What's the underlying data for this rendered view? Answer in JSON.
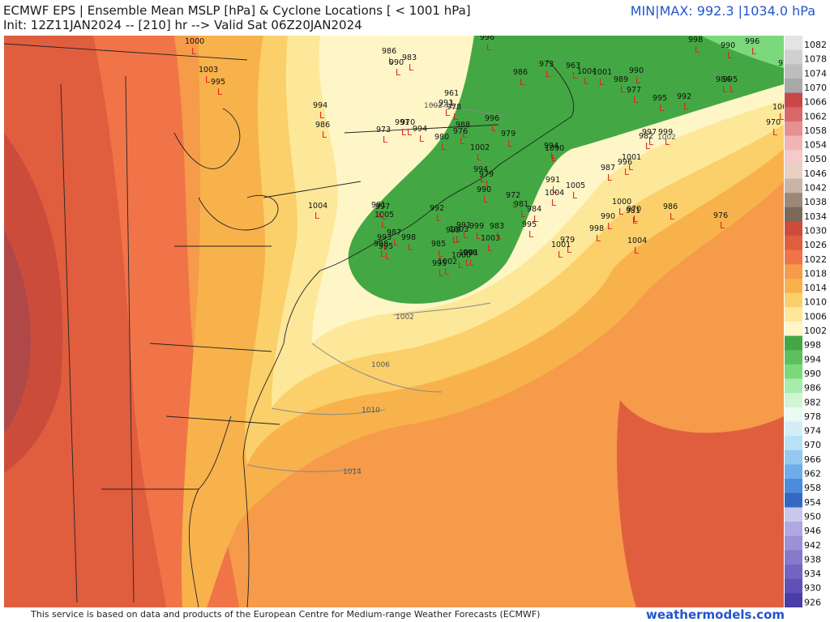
{
  "header": {
    "title_line1": "ECMWF EPS | Ensemble Mean MSLP [hPa] & Cyclone Locations [ < 1001 hPa]",
    "title_line2": "Init: 12Z11JAN2024 -- [210] hr --> Valid Sat 06Z20JAN2024",
    "minmax": "MIN|MAX: 992.3 |1034.0 hPa"
  },
  "footer": {
    "credit": "This service is based on data and products of the European Centre for Medium-range Weather Forecasts (ECMWF)",
    "brand": "weathermodels.com"
  },
  "legend": {
    "labels": [
      "1082",
      "1078",
      "1074",
      "1070",
      "1066",
      "1062",
      "1058",
      "1054",
      "1050",
      "1046",
      "1042",
      "1038",
      "1034",
      "1030",
      "1026",
      "1022",
      "1018",
      "1014",
      "1010",
      "1006",
      "1002",
      "998",
      "994",
      "990",
      "986",
      "982",
      "978",
      "974",
      "970",
      "966",
      "962",
      "958",
      "954",
      "950",
      "946",
      "942",
      "938",
      "934",
      "930",
      "926"
    ],
    "colors": [
      "#e4e4e4",
      "#d0d0d0",
      "#bdbdbd",
      "#a8a8a8",
      "#c84848",
      "#d86868",
      "#e89090",
      "#f0b4b4",
      "#f4caca",
      "#ead0c4",
      "#c8b4a8",
      "#9c8878",
      "#7c6858",
      "#cc4c3c",
      "#e05e3e",
      "#f07448",
      "#f59b4a",
      "#f8b24c",
      "#fbd06a",
      "#fde89a",
      "#fff6c8",
      "#43a843",
      "#5cc05c",
      "#7bd87b",
      "#a8ecaa",
      "#cff6d0",
      "#e9fbf3",
      "#d4eef8",
      "#b8e0f6",
      "#94c8f0",
      "#70acea",
      "#4c8cdc",
      "#3468c4",
      "#c8c8ec",
      "#b0a8e0",
      "#9c90d6",
      "#8878cc",
      "#7464c2",
      "#6050b8",
      "#4c3ca8"
    ]
  },
  "map_labels": {
    "isobars": [
      "1002",
      "1002",
      "1002",
      "1006",
      "1010",
      "1014"
    ],
    "cyclones": [
      "1000",
      "986",
      "996",
      "1003",
      "995",
      "990",
      "983",
      "994",
      "986",
      "973",
      "991",
      "970",
      "994",
      "961",
      "991",
      "978",
      "980",
      "976",
      "988",
      "996",
      "979",
      "986",
      "973",
      "963",
      "1004",
      "1001",
      "989",
      "977",
      "990",
      "995",
      "992",
      "998",
      "990",
      "996",
      "978",
      "1002",
      "984",
      "995",
      "970",
      "982",
      "997",
      "999",
      "996",
      "1001",
      "987",
      "1090",
      "991",
      "994",
      "1005",
      "994",
      "1002",
      "979",
      "972",
      "981",
      "984",
      "986",
      "976",
      "990",
      "970",
      "981",
      "979",
      "998",
      "1004",
      "1001",
      "1000",
      "1004",
      "995",
      "992",
      "1005",
      "991",
      "997",
      "998",
      "993",
      "987",
      "995",
      "998",
      "985",
      "999",
      "991",
      "999",
      "1001",
      "1003",
      "983",
      "990",
      "1003",
      "1002",
      "995",
      "1000",
      "998",
      "1004"
    ]
  }
}
